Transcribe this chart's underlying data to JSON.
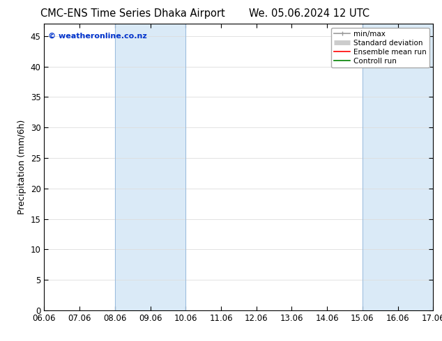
{
  "title_left": "CMC-ENS Time Series Dhaka Airport",
  "title_right": "We. 05.06.2024 12 UTC",
  "ylabel": "Precipitation (mm/6h)",
  "xlabel_ticks": [
    "06.06",
    "07.06",
    "08.06",
    "09.06",
    "10.06",
    "11.06",
    "12.06",
    "13.06",
    "14.06",
    "15.06",
    "16.06",
    "17.06"
  ],
  "ylim": [
    0,
    47
  ],
  "yticks": [
    0,
    5,
    10,
    15,
    20,
    25,
    30,
    35,
    40,
    45
  ],
  "band1_xstart": 2,
  "band1_xend": 4,
  "band2_xstart": 9,
  "band2_xend": 11,
  "shaded_color": "#daeaf7",
  "watermark_text": "© weatheronline.co.nz",
  "watermark_color": "#0033cc",
  "legend_entries": [
    {
      "label": "min/max",
      "color": "#999999",
      "lw": 1.2
    },
    {
      "label": "Standard deviation",
      "color": "#cccccc",
      "lw": 5
    },
    {
      "label": "Ensemble mean run",
      "color": "#ff0000",
      "lw": 1.2
    },
    {
      "label": "Controll run",
      "color": "#008000",
      "lw": 1.2
    }
  ],
  "bg_color": "#ffffff",
  "tick_label_fontsize": 8.5,
  "axis_label_fontsize": 9,
  "title_fontsize": 10.5
}
